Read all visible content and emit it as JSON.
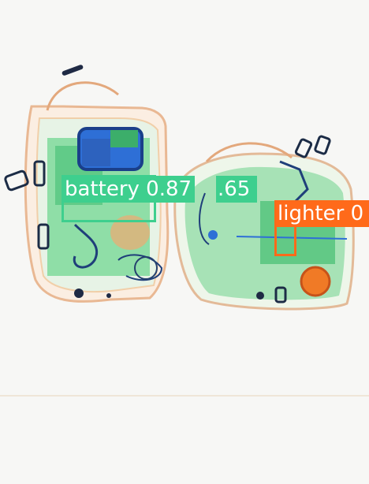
{
  "detections": [
    {
      "label": "battery",
      "score": "0.87",
      "color": "#3ecf8e",
      "text_color": "#ffffff"
    },
    {
      "label": "battery",
      "score": ".65",
      "color": "#3ecf8e",
      "text_color": "#ffffff"
    },
    {
      "label": "lighter",
      "score": "0",
      "color": "#ff6a1a",
      "text_color": "#ffffff"
    }
  ],
  "detection_text": {
    "d0": "battery 0.87",
    "d1": ".65",
    "d2": "lighter 0"
  },
  "palette": {
    "xray_organic": "#f3c9a6",
    "xray_inorganic": "#6fd28f",
    "xray_metal": "#2f6fb3",
    "xray_dense": "#1a3f8a"
  }
}
